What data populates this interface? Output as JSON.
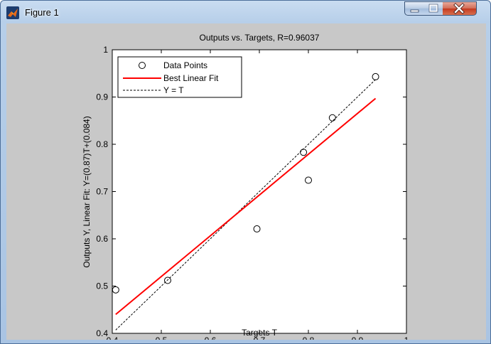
{
  "window": {
    "title": "Figure 1",
    "icon": "matlab-icon",
    "buttons": {
      "minimize": "minimize-icon",
      "maximize": "maximize-icon",
      "close": "close-icon"
    }
  },
  "colors": {
    "background": "#c8c8c8",
    "axes": "#ffffff",
    "fit_line": "#ff0000",
    "ideal_line": "#000000",
    "markers": "#000000"
  },
  "chart_data": {
    "type": "scatter",
    "title": "Outputs vs. Targets, R=0.96037",
    "xlabel": "Targets T",
    "ylabel": "Outputs Y,  Linear Fit: Y=(0.87)T+(0.084)",
    "xlim": [
      0.4,
      1
    ],
    "ylim": [
      0.4,
      1
    ],
    "xticks": [
      0.4,
      0.5,
      0.6,
      0.7,
      0.8,
      0.9,
      1
    ],
    "yticks": [
      0.4,
      0.5,
      0.6,
      0.7,
      0.8,
      0.9,
      1
    ],
    "xtick_labels": [
      "0.4",
      "0.5",
      "0.6",
      "0.7",
      "0.8",
      "0.9",
      "1"
    ],
    "ytick_labels": [
      "0.4",
      "0.5",
      "0.6",
      "0.7",
      "0.8",
      "0.9",
      "1"
    ],
    "grid": false,
    "legend_position": "top-left",
    "series": [
      {
        "name": "Data Points",
        "kind": "markers",
        "x": [
          0.407,
          0.513,
          0.695,
          0.79,
          0.8,
          0.849,
          0.937
        ],
        "y": [
          0.492,
          0.512,
          0.621,
          0.783,
          0.724,
          0.856,
          0.943
        ]
      },
      {
        "name": "Best Linear Fit",
        "kind": "line",
        "x": [
          0.407,
          0.937
        ],
        "y": [
          0.44,
          0.897
        ]
      },
      {
        "name": "Y = T",
        "kind": "dashed-line",
        "x": [
          0.407,
          0.937
        ],
        "y": [
          0.407,
          0.937
        ]
      }
    ]
  }
}
